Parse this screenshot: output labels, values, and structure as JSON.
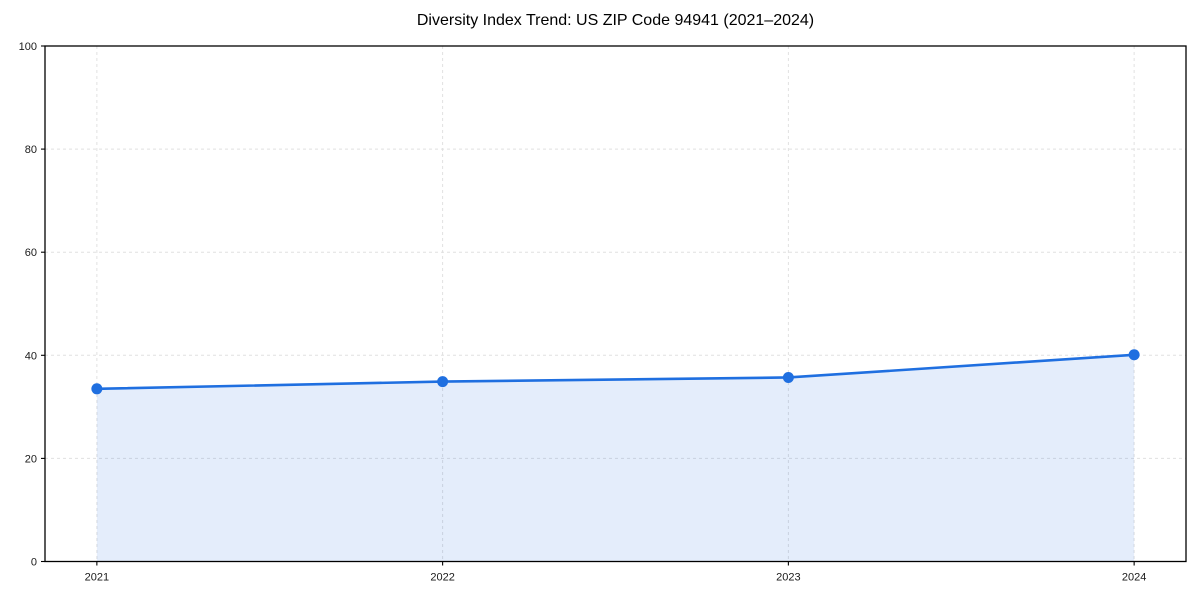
{
  "chart_data": {
    "type": "line",
    "area_fill": true,
    "marker": "circle",
    "title": "Diversity Index Trend: US ZIP Code 94941 (2021–2024)",
    "x": [
      2021,
      2022,
      2023,
      2024
    ],
    "values": [
      33.5,
      34.9,
      35.7,
      40.1
    ],
    "xtick_labels": [
      "2021",
      "2022",
      "2023",
      "2024"
    ],
    "yticks": [
      0,
      20,
      40,
      60,
      80,
      100
    ],
    "ytick_labels": [
      "0",
      "20",
      "40",
      "60",
      "80",
      "100"
    ],
    "ylim": [
      0,
      100
    ],
    "x_margin_fraction": 0.05,
    "grid": {
      "visible": true,
      "style": "dashed"
    },
    "legend": "none",
    "xlabel": "",
    "ylabel": ""
  },
  "colors": {
    "line": "#1f6fe0",
    "area_opacity": 0.12,
    "grid": "#e0e0e0",
    "axis": "#000000",
    "tick_text": "#1a1a1a",
    "title_text": "#000000",
    "background": "#ffffff"
  }
}
